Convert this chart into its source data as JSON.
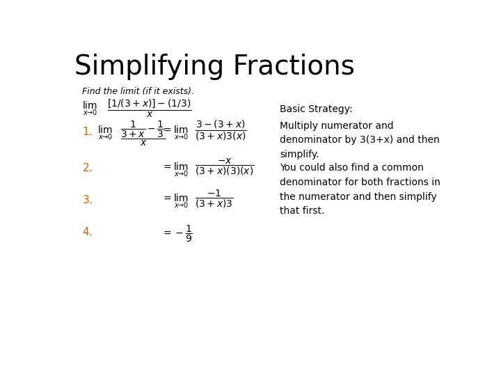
{
  "title": "Simplifying Fractions",
  "title_fontsize": 28,
  "background_color": "#ffffff",
  "text_color": "#000000",
  "orange_color": "#cc6600",
  "find_limit_text": "Find the limit (if it exists).",
  "basic_strategy_label": "Basic Strategy:",
  "basic_strategy_text": "Multiply numerator and\ndenominator by 3(3+x) and then\nsimplify.",
  "alt_strategy_text": "You could also find a common\ndenominator for both fractions in\nthe numerator and then simplify\nthat first."
}
